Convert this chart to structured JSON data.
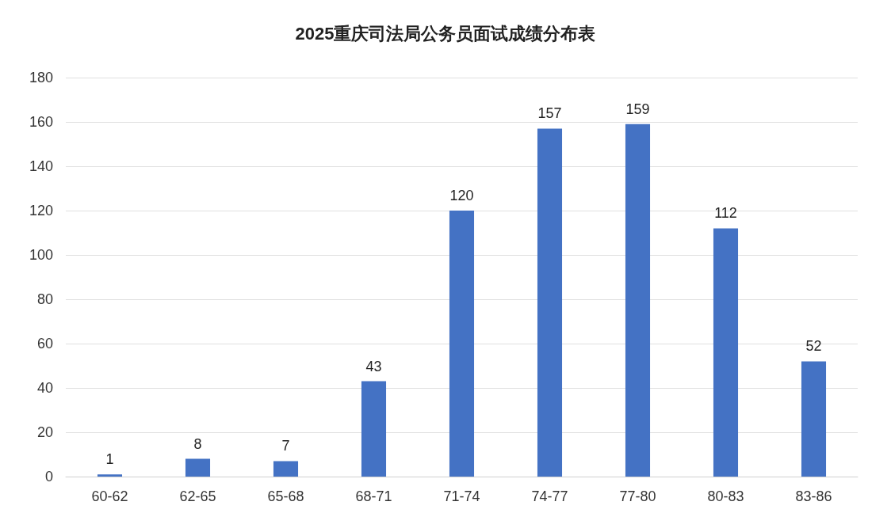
{
  "chart_data": {
    "type": "bar",
    "title": "2025重庆司法局公务员面试成绩分布表",
    "categories": [
      "60-62",
      "62-65",
      "65-68",
      "68-71",
      "71-74",
      "74-77",
      "77-80",
      "80-83",
      "83-86"
    ],
    "values": [
      1,
      8,
      7,
      43,
      120,
      157,
      159,
      112,
      52
    ],
    "color": "#4472c4",
    "ylim": [
      0,
      180
    ],
    "yticks": [
      0,
      20,
      40,
      60,
      80,
      100,
      120,
      140,
      160,
      180
    ],
    "grid": "y",
    "data_labels": true
  }
}
